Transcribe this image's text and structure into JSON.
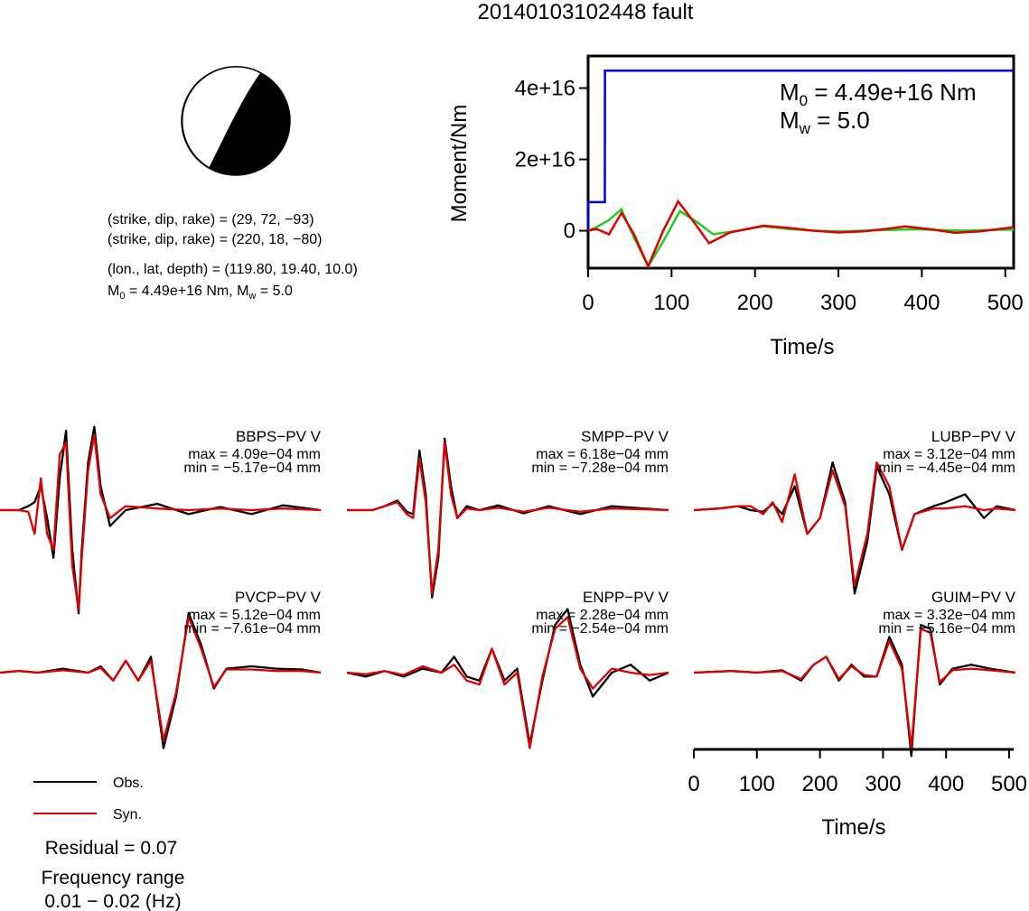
{
  "title": "20140103102448 fault",
  "focal_mechanism": {
    "planes": [
      "(strike, dip, rake) = (29, 72, −93)",
      "(strike, dip, rake) = (220, 18, −80)"
    ],
    "location": "(lon., lat, depth) = (119.80, 19.40, 10.0)",
    "moment_line": {
      "m0_sym": "M",
      "m0_sub": "0",
      "m0_rest": " = 4.49e+16 Nm, ",
      "mw_sym": "M",
      "mw_sub": "w",
      "mw_rest": " = 5.0"
    },
    "colors": {
      "fill": "#000000",
      "background": "#ffffff"
    }
  },
  "chart_data": [
    {
      "type": "line",
      "xlabel": "Time/s",
      "ylabel": "Moment/Nm",
      "xlim": [
        0,
        510
      ],
      "ylim": [
        -1.05e+16,
        4.9e+16
      ],
      "x_ticks": [
        0,
        100,
        200,
        300,
        400,
        500
      ],
      "y_ticks": [
        0,
        2e+16,
        4e+16
      ],
      "y_tick_labels": [
        "0",
        "2e+16",
        "4e+16"
      ],
      "annotation": {
        "m0_sym": "M",
        "m0_sub": "0",
        "m0_rest": " = 4.49e+16 Nm",
        "mw_sym": "M",
        "mw_sub": "w",
        "mw_rest": " = 5.0"
      },
      "series": [
        {
          "color": "#0000dd",
          "x": [
            0,
            0.1,
            20,
            20.1,
            30,
            510
          ],
          "values": [
            0,
            8000000000000000.0,
            8000000000000000.0,
            4.49e+16,
            4.49e+16,
            4.49e+16
          ]
        },
        {
          "color": "#22cc22",
          "x": [
            0,
            10,
            25,
            40,
            55,
            72,
            90,
            110,
            130,
            150,
            180,
            210,
            240,
            270,
            300,
            330,
            360,
            390,
            420,
            450,
            480,
            510
          ],
          "values": [
            0,
            1000000000000000.0,
            3000000000000000.0,
            6000000000000000.0,
            -2000000000000000.0,
            -1e+16,
            -3000000000000000.0,
            5500000000000000.0,
            2500000000000000.0,
            -1000000000000000.0,
            0.0,
            1200000000000000.0,
            500000000000000.0,
            0.0,
            -200000000000000.0,
            0.0,
            200000000000000.0,
            400000000000000.0,
            200000000000000.0,
            0.0,
            200000000000000.0,
            300000000000000.0
          ]
        },
        {
          "color": "#dd0000",
          "x": [
            0,
            10,
            25,
            40,
            55,
            72,
            90,
            108,
            125,
            145,
            170,
            210,
            240,
            270,
            300,
            330,
            360,
            380,
            410,
            440,
            470,
            510
          ],
          "values": [
            0,
            500000000000000.0,
            -1000000000000000.0,
            5000000000000000.0,
            -1000000000000000.0,
            -1e+16,
            0.0,
            8200000000000000.0,
            3000000000000000.0,
            -3500000000000000.0,
            -500000000000000.0,
            1400000000000000.0,
            800000000000000.0,
            0.0,
            -500000000000000.0,
            -200000000000000.0,
            600000000000000.0,
            1200000000000000.0,
            400000000000000.0,
            -600000000000000.0,
            -200000000000000.0,
            1000000000000000.0
          ]
        }
      ]
    },
    {
      "type": "line",
      "name": "waveform-panels",
      "legend": [
        {
          "label": "Obs.",
          "color": "#000000"
        },
        {
          "label": "Syn.",
          "color": "#dd0000"
        }
      ],
      "xlabel": "Time/s",
      "x_ticks": [
        0,
        100,
        200,
        300,
        400,
        500
      ],
      "xlim": [
        0,
        510
      ],
      "panels": [
        {
          "station": "BBPS−PV V",
          "max": "max = 4.09e−04 mm",
          "min": "min = −5.17e−04 mm",
          "max_val": 4.09,
          "min_val": -5.17,
          "t": [
            0,
            30,
            45,
            55,
            65,
            75,
            85,
            95,
            105,
            115,
            125,
            130,
            140,
            150,
            160,
            175,
            200,
            250,
            300,
            350,
            400,
            450,
            510
          ],
          "obs": [
            0,
            0,
            0.05,
            0.1,
            0.3,
            -0.1,
            -0.6,
            0.4,
            1.0,
            -0.5,
            -1.3,
            -0.5,
            0.6,
            1.05,
            0.3,
            -0.2,
            0.0,
            0.08,
            -0.05,
            0.04,
            -0.05,
            0.06,
            0
          ],
          "syn": [
            0,
            0,
            -0.02,
            -0.3,
            0.4,
            -0.3,
            -0.5,
            0.7,
            0.85,
            -0.7,
            -1.25,
            -0.6,
            0.5,
            0.95,
            0.2,
            -0.1,
            0.05,
            0.02,
            0.0,
            0.02,
            0.0,
            0.02,
            0
          ]
        },
        {
          "station": "SMPP−PV V",
          "max": "max = 6.18e−04 mm",
          "min": "min = −7.28e−04 mm",
          "max_val": 6.18,
          "min_val": -7.28,
          "t": [
            0,
            40,
            60,
            80,
            95,
            105,
            115,
            125,
            135,
            145,
            155,
            165,
            175,
            190,
            210,
            240,
            280,
            320,
            370,
            420,
            470,
            510
          ],
          "obs": [
            0,
            0,
            0.05,
            0.12,
            -0.02,
            -0.05,
            0.75,
            0.2,
            -1.1,
            -0.6,
            0.9,
            0.3,
            -0.1,
            0.05,
            0.0,
            0.06,
            -0.04,
            0.05,
            -0.05,
            0.05,
            0.02,
            0
          ],
          "syn": [
            0,
            0,
            0.05,
            0.1,
            -0.05,
            -0.1,
            0.65,
            0.1,
            -1.05,
            -0.5,
            0.85,
            0.2,
            -0.1,
            0.02,
            0.0,
            0.03,
            -0.02,
            0.03,
            -0.02,
            0.02,
            0.01,
            0
          ]
        },
        {
          "station": "LUBP−PV V",
          "max": "max = 3.12e−04 mm",
          "min": "min = −4.45e−04 mm",
          "max_val": 3.12,
          "min_val": -4.45,
          "t": [
            0,
            40,
            70,
            90,
            110,
            125,
            140,
            160,
            180,
            200,
            220,
            240,
            255,
            275,
            290,
            310,
            330,
            350,
            380,
            400,
            430,
            460,
            480,
            510
          ],
          "obs": [
            0,
            0.02,
            0.05,
            0.0,
            -0.02,
            0.08,
            -0.05,
            0.3,
            -0.3,
            -0.1,
            0.6,
            0.1,
            -1.05,
            -0.4,
            0.55,
            0.2,
            -0.5,
            -0.05,
            0.05,
            0.1,
            0.2,
            -0.1,
            0.05,
            0
          ],
          "syn": [
            0,
            0.02,
            0.05,
            0.05,
            -0.05,
            0.1,
            -0.15,
            0.45,
            -0.3,
            -0.1,
            0.5,
            0.05,
            -0.95,
            -0.3,
            0.6,
            0.3,
            -0.5,
            -0.05,
            0.02,
            0.02,
            0.05,
            0.0,
            0.02,
            0
          ]
        },
        {
          "station": "PVCP−PV V",
          "max": "max = 5.12e−04 mm",
          "min": "min = −7.61e−04 mm",
          "max_val": 5.12,
          "min_val": -7.61,
          "t": [
            0,
            30,
            60,
            100,
            140,
            160,
            180,
            200,
            220,
            240,
            260,
            280,
            300,
            320,
            340,
            360,
            400,
            440,
            480,
            510
          ],
          "obs": [
            0,
            0.02,
            0.0,
            0.05,
            0.0,
            0.08,
            -0.1,
            0.15,
            -0.1,
            0.2,
            -0.95,
            -0.3,
            0.75,
            0.35,
            -0.2,
            0.05,
            0.08,
            0.05,
            0.04,
            0
          ],
          "syn": [
            0,
            0.02,
            0.0,
            0.03,
            0.0,
            0.06,
            -0.1,
            0.15,
            -0.1,
            0.15,
            -0.85,
            -0.25,
            0.7,
            0.3,
            -0.18,
            0.04,
            0.04,
            0.02,
            0.02,
            0
          ]
        },
        {
          "station": "ENPP−PV V",
          "max": "max = 2.28e−04 mm",
          "min": "min = −2.54e−04 mm",
          "max_val": 2.28,
          "min_val": -2.54,
          "t": [
            0,
            30,
            60,
            90,
            120,
            150,
            170,
            190,
            210,
            230,
            250,
            270,
            290,
            310,
            330,
            350,
            370,
            390,
            420,
            450,
            480,
            510
          ],
          "obs": [
            0,
            -0.05,
            0.02,
            -0.05,
            0.05,
            0.0,
            0.2,
            -0.05,
            -0.1,
            0.3,
            -0.1,
            0.05,
            -0.9,
            -0.1,
            0.6,
            0.8,
            0.1,
            -0.3,
            0.0,
            0.1,
            -0.1,
            0
          ],
          "syn": [
            0,
            -0.02,
            0.02,
            -0.03,
            0.08,
            0.0,
            0.1,
            -0.1,
            -0.15,
            0.3,
            -0.15,
            0.0,
            -0.95,
            -0.05,
            0.55,
            0.7,
            0.05,
            -0.2,
            0.05,
            0.0,
            -0.03,
            0
          ]
        },
        {
          "station": "GUIM−PV V",
          "max": "max = 3.32e−04 mm",
          "min": "min = −5.16e−04 mm",
          "max_val": 3.32,
          "min_val": -5.16,
          "t": [
            0,
            60,
            100,
            140,
            170,
            190,
            210,
            230,
            250,
            270,
            290,
            310,
            330,
            345,
            360,
            375,
            390,
            410,
            440,
            470,
            510
          ],
          "obs": [
            0,
            0.02,
            0.0,
            0.03,
            -0.1,
            0.1,
            0.2,
            -0.1,
            0.1,
            -0.05,
            -0.05,
            0.45,
            0.1,
            -1.05,
            0.6,
            0.55,
            -0.15,
            0.05,
            0.1,
            0.05,
            0
          ],
          "syn": [
            0,
            0.02,
            0.0,
            0.02,
            -0.08,
            0.1,
            0.2,
            -0.08,
            0.08,
            -0.03,
            -0.05,
            0.4,
            0.05,
            -0.95,
            0.55,
            0.5,
            -0.12,
            0.03,
            0.05,
            0.03,
            0
          ]
        }
      ]
    }
  ],
  "footer": {
    "residual": "Residual = 0.07",
    "freq_title": "Frequency range",
    "freq_value": "0.01 − 0.02 (Hz)"
  }
}
